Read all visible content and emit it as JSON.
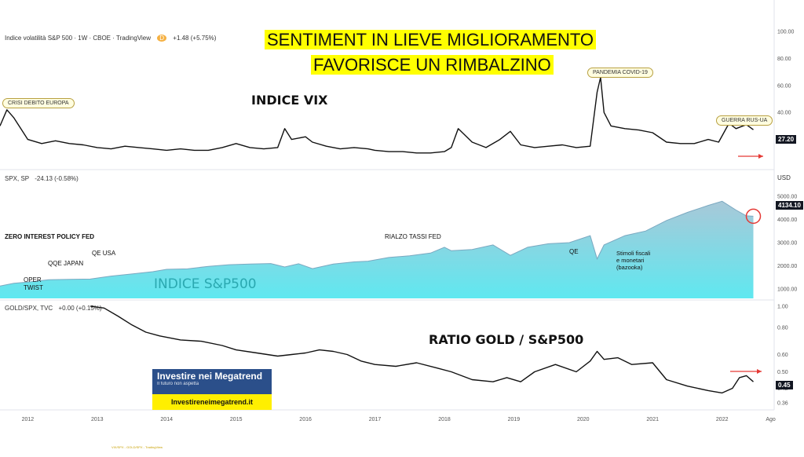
{
  "title": {
    "line1": "SENTIMENT IN LIEVE MIGLIORAMENTO",
    "line2": "FAVORISCE UN RIMBALZINO"
  },
  "panels": {
    "vix": {
      "header": "Indice volatilità S&P 500 · 1W · CBOE · TradingView",
      "badge": "D",
      "change": "+1.48 (+5.75%)",
      "label": "INDICE VIX",
      "last_value": "27.20",
      "callouts": [
        "CRISI DEBITO EUROPA",
        "PANDEMIA COVID-19",
        "GUERRA RUS-UA"
      ]
    },
    "spx": {
      "header": "SPX, SP",
      "change": "-24.13 (-0.58%)",
      "currency": "USD",
      "label": "INDICE S&P500",
      "last_value": "4134.10",
      "annotations": {
        "zirp": "ZERO INTEREST POLICY FED",
        "qqe": "QQE JAPAN",
        "qe_usa": "QE USA",
        "oper1": "OPER",
        "oper2": "TWIST",
        "rialzo": "RIALZO TASSI FED",
        "qe": "QE",
        "stimoli1": "Stimoli fiscali",
        "stimoli2": "e monetari",
        "stimoli3": "(bazooka)"
      }
    },
    "ratio": {
      "header": "GOLD/SPX, TVC",
      "change": "+0.00 (+0.15%)",
      "label": "RATIO GOLD / S&P500",
      "last_value": "0.45"
    }
  },
  "logo": {
    "line1": "Investire nei Megatrend",
    "line2": "Il futuro non aspetta",
    "url": "Investireneimegatrend.it"
  },
  "footnote": "VIX/SPX - GOLD/SPX - TradingView",
  "colors": {
    "headline_bg": "#ffff00",
    "spx_fill_top": "#a8c8d8",
    "spx_fill_bottom": "#5fe8f0",
    "arrow": "#e53935",
    "rect_red": "#e53935",
    "rect_orange": "#ff9800",
    "rect_olive": "#9aa030",
    "spx_label": "#2aa8b0"
  },
  "chart_data": [
    {
      "type": "line",
      "name": "VIX",
      "x": [
        2011.6,
        2011.7,
        2011.8,
        2011.9,
        2012.0,
        2012.2,
        2012.4,
        2012.6,
        2012.8,
        2013.0,
        2013.2,
        2013.4,
        2013.6,
        2013.8,
        2014.0,
        2014.2,
        2014.4,
        2014.6,
        2014.8,
        2015.0,
        2015.2,
        2015.4,
        2015.6,
        2015.7,
        2015.8,
        2016.0,
        2016.1,
        2016.3,
        2016.5,
        2016.7,
        2016.9,
        2017.0,
        2017.2,
        2017.4,
        2017.6,
        2017.8,
        2018.0,
        2018.1,
        2018.2,
        2018.4,
        2018.6,
        2018.8,
        2018.95,
        2019.1,
        2019.3,
        2019.5,
        2019.7,
        2019.9,
        2020.1,
        2020.2,
        2020.25,
        2020.3,
        2020.4,
        2020.6,
        2020.8,
        2021.0,
        2021.2,
        2021.4,
        2021.6,
        2021.8,
        2021.95,
        2022.1,
        2022.2,
        2022.35,
        2022.45
      ],
      "y": [
        30,
        42,
        36,
        28,
        20,
        17,
        19,
        17,
        16,
        14,
        13,
        15,
        14,
        13,
        12,
        13,
        12,
        12,
        14,
        17,
        14,
        13,
        14,
        28,
        20,
        22,
        18,
        15,
        13,
        14,
        13,
        12,
        11,
        11,
        10,
        10,
        11,
        14,
        28,
        18,
        14,
        20,
        26,
        16,
        14,
        15,
        16,
        14,
        15,
        55,
        66,
        40,
        30,
        28,
        27,
        25,
        18,
        17,
        17,
        20,
        18,
        32,
        28,
        31,
        27.2
      ],
      "ylim": [
        0,
        100
      ],
      "yticks": [
        20,
        40,
        60,
        80,
        100
      ],
      "last": 27.2
    },
    {
      "type": "area",
      "name": "S&P 500",
      "x": [
        2011.6,
        2011.8,
        2012.0,
        2012.3,
        2012.6,
        2012.9,
        2013.2,
        2013.5,
        2013.8,
        2014.0,
        2014.3,
        2014.6,
        2014.9,
        2015.2,
        2015.5,
        2015.7,
        2015.9,
        2016.1,
        2016.4,
        2016.7,
        2016.9,
        2017.2,
        2017.5,
        2017.8,
        2018.0,
        2018.1,
        2018.4,
        2018.7,
        2018.95,
        2019.2,
        2019.5,
        2019.8,
        2020.1,
        2020.2,
        2020.3,
        2020.6,
        2020.9,
        2021.2,
        2021.5,
        2021.8,
        2022.0,
        2022.2,
        2022.35,
        2022.45
      ],
      "y": [
        1130,
        1250,
        1300,
        1400,
        1420,
        1430,
        1560,
        1650,
        1750,
        1850,
        1870,
        1980,
        2050,
        2080,
        2100,
        1950,
        2090,
        1880,
        2080,
        2170,
        2200,
        2360,
        2430,
        2550,
        2800,
        2650,
        2700,
        2900,
        2450,
        2800,
        2950,
        3000,
        3300,
        2300,
        2900,
        3300,
        3500,
        3950,
        4300,
        4600,
        4780,
        4400,
        4150,
        4134.1
      ],
      "ylim": [
        600,
        5600
      ],
      "yticks": [
        1000,
        2000,
        3000,
        4000,
        5000
      ],
      "last": 4134.1
    },
    {
      "type": "line",
      "name": "GOLD/SPX",
      "x": [
        2012.9,
        2013.1,
        2013.3,
        2013.5,
        2013.7,
        2013.9,
        2014.2,
        2014.5,
        2014.8,
        2015.0,
        2015.3,
        2015.6,
        2015.8,
        2016.0,
        2016.2,
        2016.4,
        2016.6,
        2016.8,
        2017.0,
        2017.3,
        2017.6,
        2017.9,
        2018.1,
        2018.4,
        2018.7,
        2018.9,
        2019.1,
        2019.3,
        2019.6,
        2019.9,
        2020.1,
        2020.2,
        2020.3,
        2020.5,
        2020.7,
        2021.0,
        2021.2,
        2021.5,
        2021.8,
        2022.0,
        2022.15,
        2022.25,
        2022.35,
        2022.45
      ],
      "y": [
        1.0,
        0.98,
        0.9,
        0.82,
        0.76,
        0.73,
        0.7,
        0.69,
        0.66,
        0.63,
        0.61,
        0.59,
        0.6,
        0.61,
        0.63,
        0.62,
        0.6,
        0.56,
        0.54,
        0.53,
        0.55,
        0.52,
        0.5,
        0.46,
        0.45,
        0.47,
        0.45,
        0.5,
        0.54,
        0.5,
        0.56,
        0.62,
        0.57,
        0.58,
        0.54,
        0.55,
        0.46,
        0.43,
        0.41,
        0.4,
        0.42,
        0.47,
        0.48,
        0.45
      ],
      "ylim": [
        0.34,
        1.05
      ],
      "yticks": [
        1.0,
        0.8,
        0.6,
        0.5,
        0.42,
        0.36
      ],
      "last": 0.45
    }
  ],
  "x_axis": {
    "ticks": [
      "2012",
      "2013",
      "2014",
      "2015",
      "2016",
      "2017",
      "2018",
      "2019",
      "2020",
      "2021",
      "2022",
      "Ago"
    ],
    "range": [
      2011.6,
      2022.75
    ]
  }
}
